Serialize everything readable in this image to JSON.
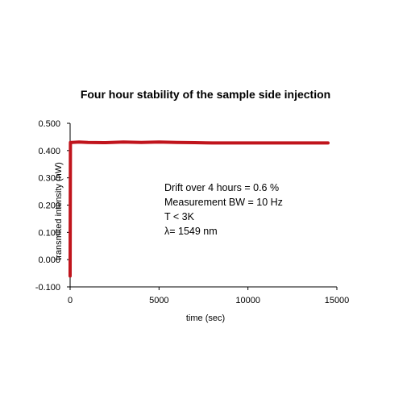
{
  "chart_data": {
    "type": "line",
    "title": "Four hour stability of the sample side injection",
    "xlabel": "time (sec)",
    "ylabel": "transmited intensity (nW)",
    "xlim": [
      0,
      15000
    ],
    "ylim": [
      -0.1,
      0.5
    ],
    "xticks": [
      "0",
      "5000",
      "10000",
      "15000"
    ],
    "xtick_values": [
      0,
      5000,
      10000,
      15000
    ],
    "yticks": [
      "0.500",
      "0.400",
      "0.300",
      "0.200",
      "0.100",
      "0.000",
      "-0.100"
    ],
    "ytick_values": [
      0.5,
      0.4,
      0.3,
      0.2,
      0.1,
      0.0,
      -0.1
    ],
    "grid": false,
    "series": [
      {
        "color": "#c0141c",
        "x": [
          0,
          20,
          40,
          100,
          500,
          1000,
          2000,
          3000,
          4000,
          5000,
          6000,
          7000,
          8000,
          9000,
          10000,
          11000,
          12000,
          13000,
          14000,
          14500
        ],
        "y": [
          -0.06,
          0.43,
          0.43,
          0.43,
          0.431,
          0.43,
          0.429,
          0.431,
          0.43,
          0.431,
          0.43,
          0.429,
          0.428,
          0.428,
          0.428,
          0.428,
          0.428,
          0.428,
          0.428,
          0.428
        ]
      }
    ],
    "annotations": [
      "Drift over 4 hours   = 0.6 %",
      "Measurement BW  = 10 Hz",
      "T < 3K",
      "λ= 1549 nm"
    ]
  }
}
